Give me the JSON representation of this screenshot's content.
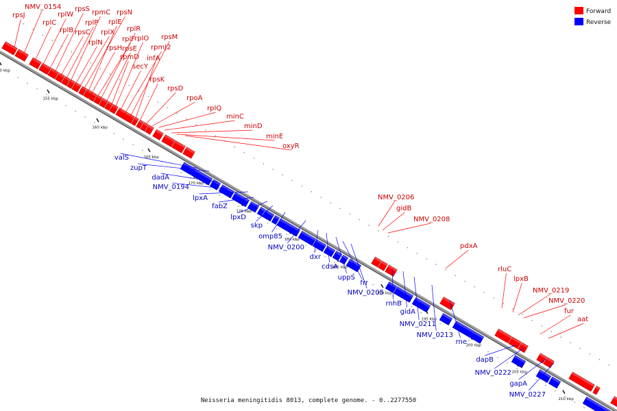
{
  "caption": "Neisseria meningitidis 8013, complete genome. - 0..2277550",
  "legend": [
    {
      "label": "Forward",
      "color": "#ff0000"
    },
    {
      "label": "Reverse",
      "color": "#0000ff"
    }
  ],
  "colors": {
    "forward": "#ff0000",
    "reverse": "#0000ff",
    "backbone": "#9a9a9a",
    "label_forward": "#cc0000",
    "label_reverse": "#0000bb"
  },
  "ticks": [
    "150 kbp",
    "155 kbp",
    "160 kbp",
    "165 kbp",
    "170 kbp",
    "175 kbp",
    "180 kbp",
    "185 kbp",
    "190 kbp",
    "195 kbp",
    "200 kbp",
    "205 kbp",
    "210 kbp"
  ],
  "forward_genes": [
    "rpsJ",
    "NMV_0154",
    "rplC",
    "rplW",
    "rplB",
    "rpsS",
    "rpsC",
    "rplP",
    "rpmC",
    "rplN",
    "rplX",
    "rpsN",
    "rplE",
    "rpsH",
    "rplF",
    "rplR",
    "rpsE",
    "rpmD",
    "rplO",
    "secY",
    "rpmJ2",
    "rpsM",
    "infA",
    "rpsK",
    "rpsD",
    "rpoA",
    "rplQ",
    "minC",
    "minD",
    "minE",
    "oxyR",
    "NMV_0206",
    "gidB",
    "NMV_0208",
    "pdxA",
    "rluC",
    "lpxB",
    "NMV_0219",
    "NMV_0220",
    "fur",
    "aat"
  ],
  "reverse_genes": [
    "valS",
    "zupT",
    "dadA",
    "NMV_0194",
    "lpxA",
    "fabZ",
    "lpxD",
    "skp",
    "omp85",
    "NMV_0200",
    "dxr",
    "cdsA",
    "uppS",
    "frr",
    "NMV_0205",
    "rnhB",
    "gidA",
    "NMV_0211",
    "NMV_0213",
    "rne",
    "dapB",
    "NMV_0222",
    "gapA",
    "NMV_0227"
  ]
}
